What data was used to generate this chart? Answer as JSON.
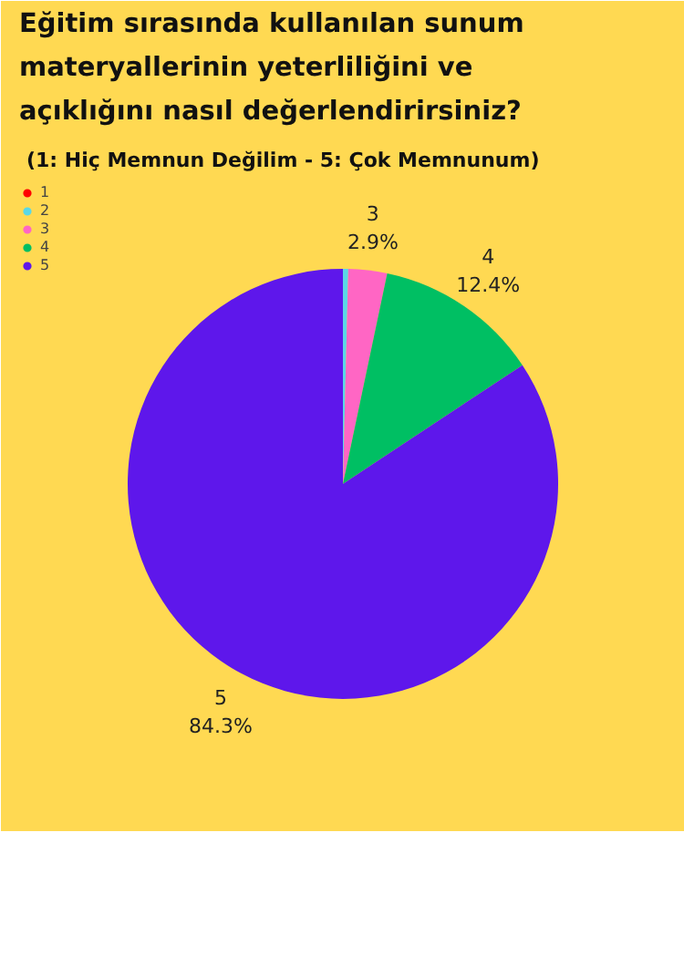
{
  "chart_data": {
    "type": "pie",
    "title": "Eğitim sırasında kullanılan sunum materyallerinin yeterliliğini ve açıklığını nasıl değerlendirirsiniz?",
    "subtitle": "(1: Hiç Memnun Değilim - 5: Çok Memnunum)",
    "categories": [
      "1",
      "2",
      "3",
      "4",
      "5"
    ],
    "values": [
      0,
      0.4,
      2.9,
      12.4,
      84.3
    ],
    "colors": [
      "#ff0000",
      "#5ad8e6",
      "#ff66c4",
      "#00bf63",
      "#5e17eb"
    ],
    "value_labels": [
      null,
      null,
      "2.9%",
      "12.4%",
      "84.3%"
    ],
    "legend": "top left"
  }
}
